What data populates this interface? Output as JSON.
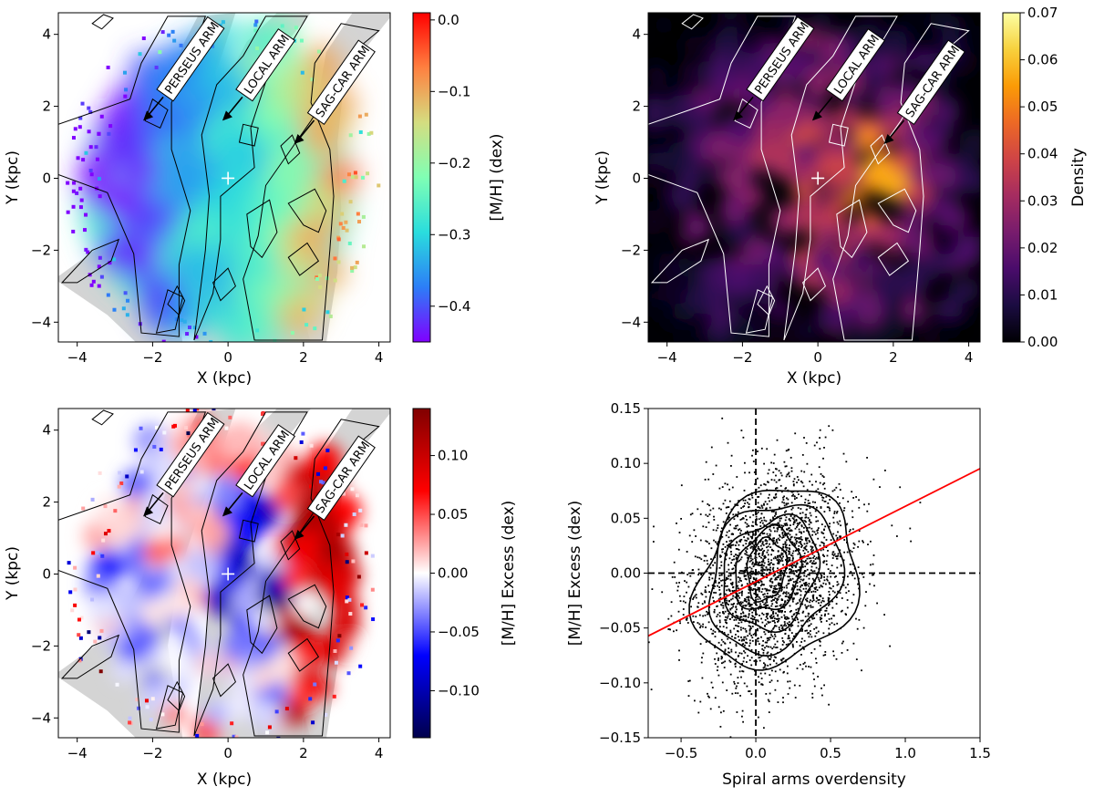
{
  "colors": {
    "contour_black": "#000000",
    "contour_white": "#ffffff",
    "arm_fill": "#cccccc",
    "fit_line": "#ff0000"
  },
  "chart_data": [
    {
      "type": "heatmap",
      "title": "",
      "xlabel": "X (kpc)",
      "ylabel": "Y (kpc)",
      "xlim": [
        -4.5,
        4.3
      ],
      "ylim": [
        -4.55,
        4.6
      ],
      "xticks": [
        -4,
        -2,
        0,
        2,
        4
      ],
      "yticks": [
        -4,
        -2,
        0,
        2,
        4
      ],
      "xtick_labels": [
        "−4",
        "−2",
        "0",
        "2",
        "4"
      ],
      "ytick_labels": [
        "−4",
        "−2",
        "0",
        "2",
        "4"
      ],
      "colorbar": {
        "label": "[M/H] (dex)",
        "colormap": "rainbow",
        "range": [
          -0.45,
          0.01
        ],
        "ticks": [
          0.0,
          -0.1,
          -0.2,
          -0.3,
          -0.4
        ],
        "tick_labels": [
          "0.0",
          "−0.1",
          "−0.2",
          "−0.3",
          "−0.4"
        ],
        "stops": [
          "#8000ff",
          "#2c7ef7",
          "#2adddd",
          "#80ffb4",
          "#d4dd80",
          "#ff8040",
          "#ff0000"
        ]
      },
      "arm_labels": [
        {
          "text": "PERSEUS ARM",
          "arrow_tip": [
            -2.25,
            1.6
          ]
        },
        {
          "text": "LOCAL ARM",
          "arrow_tip": [
            -0.15,
            1.6
          ]
        },
        {
          "text": "SAG-CAR ARM",
          "arrow_tip": [
            1.75,
            0.95
          ]
        }
      ],
      "sun_position": [
        0,
        0
      ]
    },
    {
      "type": "heatmap",
      "title": "",
      "xlabel": "X (kpc)",
      "ylabel": "Y (kpc)",
      "xlim": [
        -4.5,
        4.3
      ],
      "ylim": [
        -4.55,
        4.6
      ],
      "xticks": [
        -4,
        -2,
        0,
        2,
        4
      ],
      "yticks": [
        -4,
        -2,
        0,
        2,
        4
      ],
      "xtick_labels": [
        "−4",
        "−2",
        "0",
        "2",
        "4"
      ],
      "ytick_labels": [
        "−4",
        "−2",
        "0",
        "2",
        "4"
      ],
      "colorbar": {
        "label": "Density",
        "colormap": "inferno",
        "range": [
          0.0,
          0.07
        ],
        "ticks": [
          0.07,
          0.06,
          0.05,
          0.04,
          0.03,
          0.02,
          0.01,
          0.0
        ],
        "tick_labels": [
          "0.07",
          "0.06",
          "0.05",
          "0.04",
          "0.03",
          "0.02",
          "0.01",
          "0.00"
        ],
        "stops": [
          "#000004",
          "#1b0c41",
          "#4a0c6b",
          "#781c6d",
          "#a52c60",
          "#cf4446",
          "#ed6925",
          "#fb9b06",
          "#f7d13d",
          "#fcffa4"
        ]
      },
      "arm_labels": [
        {
          "text": "PERSEUS ARM",
          "arrow_tip": [
            -2.25,
            1.6
          ]
        },
        {
          "text": "LOCAL ARM",
          "arrow_tip": [
            -0.15,
            1.6
          ]
        },
        {
          "text": "SAG-CAR ARM",
          "arrow_tip": [
            1.75,
            0.95
          ]
        }
      ],
      "sun_position": [
        0,
        0
      ]
    },
    {
      "type": "heatmap",
      "title": "",
      "xlabel": "X (kpc)",
      "ylabel": "Y (kpc)",
      "xlim": [
        -4.5,
        4.3
      ],
      "ylim": [
        -4.55,
        4.6
      ],
      "xticks": [
        -4,
        -2,
        0,
        2,
        4
      ],
      "yticks": [
        -4,
        -2,
        0,
        2,
        4
      ],
      "xtick_labels": [
        "−4",
        "−2",
        "0",
        "2",
        "4"
      ],
      "ytick_labels": [
        "−4",
        "−2",
        "0",
        "2",
        "4"
      ],
      "colorbar": {
        "label": "[M/H] Excess (dex)",
        "colormap": "seismic",
        "range": [
          -0.14,
          0.14
        ],
        "ticks": [
          0.1,
          0.05,
          0.0,
          -0.05,
          -0.1
        ],
        "tick_labels": [
          "0.10",
          "0.05",
          "0.00",
          "−0.05",
          "−0.10"
        ],
        "stops": [
          "#00004c",
          "#0000ff",
          "#ffffff",
          "#ff0000",
          "#800000"
        ]
      },
      "arm_labels": [
        {
          "text": "PERSEUS ARM",
          "arrow_tip": [
            -2.25,
            1.6
          ]
        },
        {
          "text": "LOCAL ARM",
          "arrow_tip": [
            -0.15,
            1.6
          ]
        },
        {
          "text": "SAG-CAR ARM",
          "arrow_tip": [
            1.75,
            0.95
          ]
        }
      ],
      "sun_position": [
        0,
        0
      ]
    },
    {
      "type": "scatter",
      "title": "",
      "xlabel": "Spiral arms overdensity",
      "ylabel": "[M/H] Excess (dex)",
      "xlim": [
        -0.72,
        1.5
      ],
      "ylim": [
        -0.15,
        0.15
      ],
      "xticks": [
        -0.5,
        0.0,
        0.5,
        1.0,
        1.5
      ],
      "yticks": [
        -0.15,
        -0.1,
        -0.05,
        0.0,
        0.05,
        0.1,
        0.15
      ],
      "xtick_labels": [
        "−0.5",
        "0.0",
        "0.5",
        "1.0",
        "1.5"
      ],
      "ytick_labels": [
        "−0.15",
        "−0.10",
        "−0.05",
        "0.00",
        "0.05",
        "0.10",
        "0.15"
      ],
      "fit_line": {
        "slope": 0.0687,
        "intercept": -0.0078
      },
      "reference_lines": {
        "x": 0.0,
        "y": 0.0
      },
      "cloud": {
        "center": [
          0.1,
          -0.002
        ],
        "sd_x": 0.26,
        "sd_y": 0.046,
        "n_points": 2600
      },
      "density_contours": [
        {
          "cx": 0.07,
          "cy": 0.003,
          "rx": 0.13,
          "ry": 0.028
        },
        {
          "cx": 0.08,
          "cy": 0.002,
          "rx": 0.22,
          "ry": 0.037
        },
        {
          "cx": 0.1,
          "cy": 0.0,
          "rx": 0.32,
          "ry": 0.05
        },
        {
          "cx": 0.12,
          "cy": -0.003,
          "rx": 0.44,
          "ry": 0.066
        },
        {
          "cx": 0.14,
          "cy": -0.005,
          "rx": 0.54,
          "ry": 0.08
        }
      ]
    }
  ]
}
